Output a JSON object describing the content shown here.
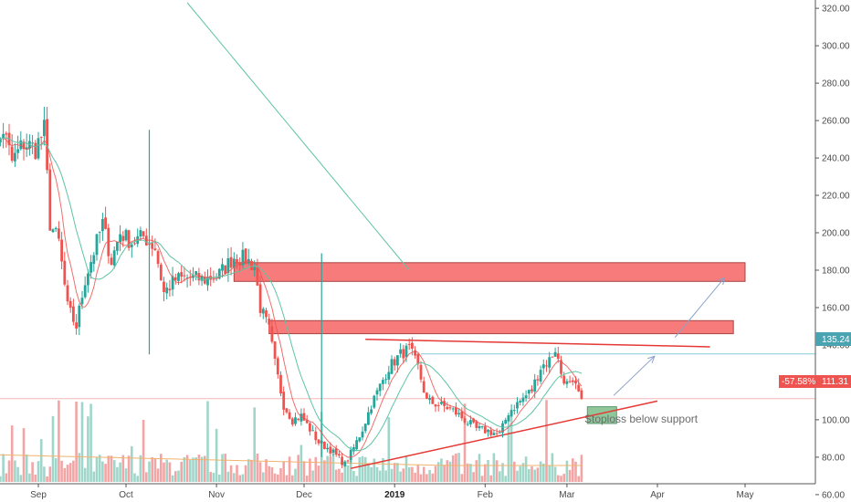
{
  "chart_data": {
    "type": "candlestick",
    "y_ticks": [
      "320.00",
      "300.00",
      "280.00",
      "260.00",
      "240.00",
      "220.00",
      "200.00",
      "180.00",
      "160.00",
      "140.00",
      "120.00",
      "100.00",
      "80.00",
      "60.00"
    ],
    "y_tick_values": [
      320,
      300,
      280,
      260,
      240,
      220,
      200,
      180,
      160,
      140,
      120,
      100,
      80,
      60
    ],
    "x_labels": [
      {
        "label": "Sep",
        "date": "2018-09-01"
      },
      {
        "label": "Oct",
        "date": "2018-10-01"
      },
      {
        "label": "Nov",
        "date": "2018-11-01"
      },
      {
        "label": "Dec",
        "date": "2018-12-01"
      },
      {
        "label": "2019",
        "date": "2019-01-01",
        "bold": true
      },
      {
        "label": "Feb",
        "date": "2019-02-01"
      },
      {
        "label": "Mar",
        "date": "2019-03-01"
      },
      {
        "label": "Apr",
        "date": "2019-04-01"
      },
      {
        "label": "May",
        "date": "2019-05-01"
      }
    ],
    "ylim": [
      57,
      323
    ],
    "price_path": [
      [
        "2018-08-14",
        265
      ],
      [
        "2018-08-17",
        240
      ],
      [
        "2018-08-20",
        255
      ],
      [
        "2018-08-23",
        238
      ],
      [
        "2018-08-27",
        248
      ],
      [
        "2018-08-31",
        245
      ],
      [
        "2018-09-03",
        255
      ],
      [
        "2018-09-05",
        205
      ],
      [
        "2018-09-08",
        195
      ],
      [
        "2018-09-11",
        160
      ],
      [
        "2018-09-14",
        150
      ],
      [
        "2018-09-17",
        175
      ],
      [
        "2018-09-20",
        190
      ],
      [
        "2018-09-23",
        205
      ],
      [
        "2018-09-26",
        185
      ],
      [
        "2018-09-29",
        200
      ],
      [
        "2018-10-03",
        195
      ],
      [
        "2018-10-07",
        198
      ],
      [
        "2018-10-11",
        192
      ],
      [
        "2018-10-14",
        168
      ],
      [
        "2018-10-18",
        175
      ],
      [
        "2018-10-23",
        176
      ],
      [
        "2018-10-28",
        175
      ],
      [
        "2018-11-02",
        178
      ],
      [
        "2018-11-07",
        187
      ],
      [
        "2018-11-11",
        186
      ],
      [
        "2018-11-14",
        182
      ],
      [
        "2018-11-16",
        160
      ],
      [
        "2018-11-19",
        148
      ],
      [
        "2018-11-21",
        130
      ],
      [
        "2018-11-24",
        108
      ],
      [
        "2018-11-27",
        100
      ],
      [
        "2018-11-30",
        102
      ],
      [
        "2018-12-03",
        95
      ],
      [
        "2018-12-06",
        88
      ],
      [
        "2018-12-10",
        84
      ],
      [
        "2018-12-15",
        76
      ],
      [
        "2018-12-18",
        85
      ],
      [
        "2018-12-21",
        95
      ],
      [
        "2018-12-24",
        108
      ],
      [
        "2018-12-27",
        118
      ],
      [
        "2018-12-30",
        128
      ],
      [
        "2019-01-03",
        135
      ],
      [
        "2019-01-06",
        138
      ],
      [
        "2019-01-09",
        128
      ],
      [
        "2019-01-12",
        110
      ],
      [
        "2019-01-16",
        108
      ],
      [
        "2019-01-20",
        106
      ],
      [
        "2019-01-25",
        100
      ],
      [
        "2019-01-29",
        95
      ],
      [
        "2019-02-02",
        94
      ],
      [
        "2019-02-06",
        92
      ],
      [
        "2019-02-09",
        104
      ],
      [
        "2019-02-13",
        110
      ],
      [
        "2019-02-17",
        116
      ],
      [
        "2019-02-20",
        128
      ],
      [
        "2019-02-23",
        132
      ],
      [
        "2019-02-25",
        138
      ],
      [
        "2019-02-27",
        125
      ],
      [
        "2019-03-01",
        119
      ],
      [
        "2019-03-04",
        117
      ],
      [
        "2019-03-06",
        111.31
      ]
    ],
    "volume_spikes": [
      {
        "date": "2018-10-09",
        "high": 255,
        "low": 135
      },
      {
        "date": "2018-12-07",
        "high": 189,
        "low": 80
      }
    ],
    "zones": [
      {
        "name": "resistance-zone-upper",
        "x1": "2018-11-07",
        "x2": "2019-05-01",
        "y_top": 184,
        "y_bottom": 174
      },
      {
        "name": "resistance-zone-lower",
        "x1": "2018-11-19",
        "x2": "2019-04-27",
        "y_top": 153,
        "y_bottom": 146
      }
    ],
    "stoploss_box": {
      "x1": "2019-03-08",
      "x2": "2019-03-18",
      "y_top": 107,
      "y_bottom": 98
    },
    "lines": [
      {
        "name": "resistance-trendline",
        "x1": "2018-12-22",
        "y1": 143,
        "x2": "2019-04-19",
        "y2": 139
      },
      {
        "name": "support-trendline",
        "x1": "2018-12-17",
        "y1": 74,
        "x2": "2019-04-01",
        "y2": 110
      },
      {
        "name": "long-downtrend-line",
        "x1": "2018-10-22",
        "y1": 323,
        "x2": "2019-01-06",
        "y2": 180
      }
    ],
    "arrows": [
      {
        "x1": "2019-03-17",
        "y1": 113,
        "x2": "2019-03-31",
        "y2": 134
      },
      {
        "x1": "2019-04-07",
        "y1": 144,
        "x2": "2019-04-24",
        "y2": 176
      }
    ],
    "horizontal_ref": {
      "value": 135.24,
      "from": "2019-01-10"
    },
    "last_price_line": 111.31,
    "price_label": "135.24",
    "last_price_label": "111.31",
    "change_label": "-57.58%",
    "annotation": "Stoploss below support",
    "colors": {
      "up": "#26a69a",
      "down": "#ef5350",
      "zone": "#f77b7b",
      "zone_border": "#a94442",
      "trend_red": "#e53935",
      "teal": "#5fc4a6",
      "ma": "#ef5350",
      "arrow": "#8aa0c8",
      "stop_box": "#8fc79b",
      "ref_line": "#86c9d8",
      "price_tag": "#4aa3b1",
      "last_tag": "#ef5350"
    }
  }
}
